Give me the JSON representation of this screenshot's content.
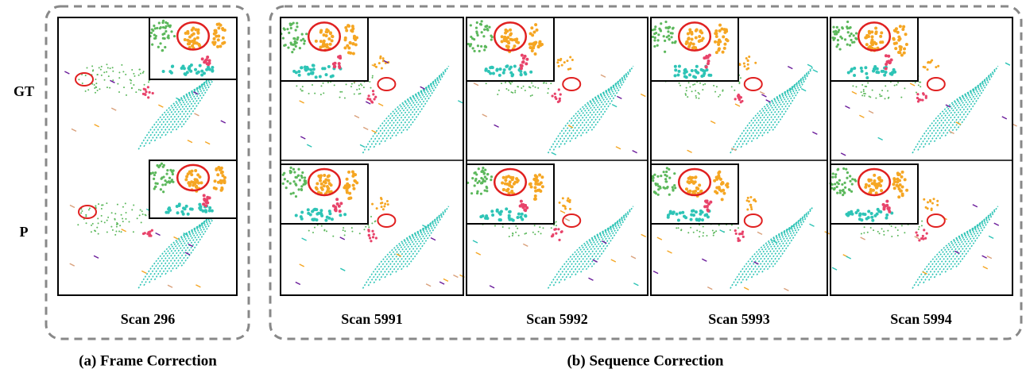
{
  "row_labels": [
    "GT",
    "P"
  ],
  "frame_correction": {
    "scan": "Scan 296",
    "caption": "(a) Frame Correction"
  },
  "sequence_correction": {
    "scans": [
      "Scan 5991",
      "Scan 5992",
      "Scan 5993",
      "Scan 5994"
    ],
    "caption": "(b) Sequence Correction"
  }
}
